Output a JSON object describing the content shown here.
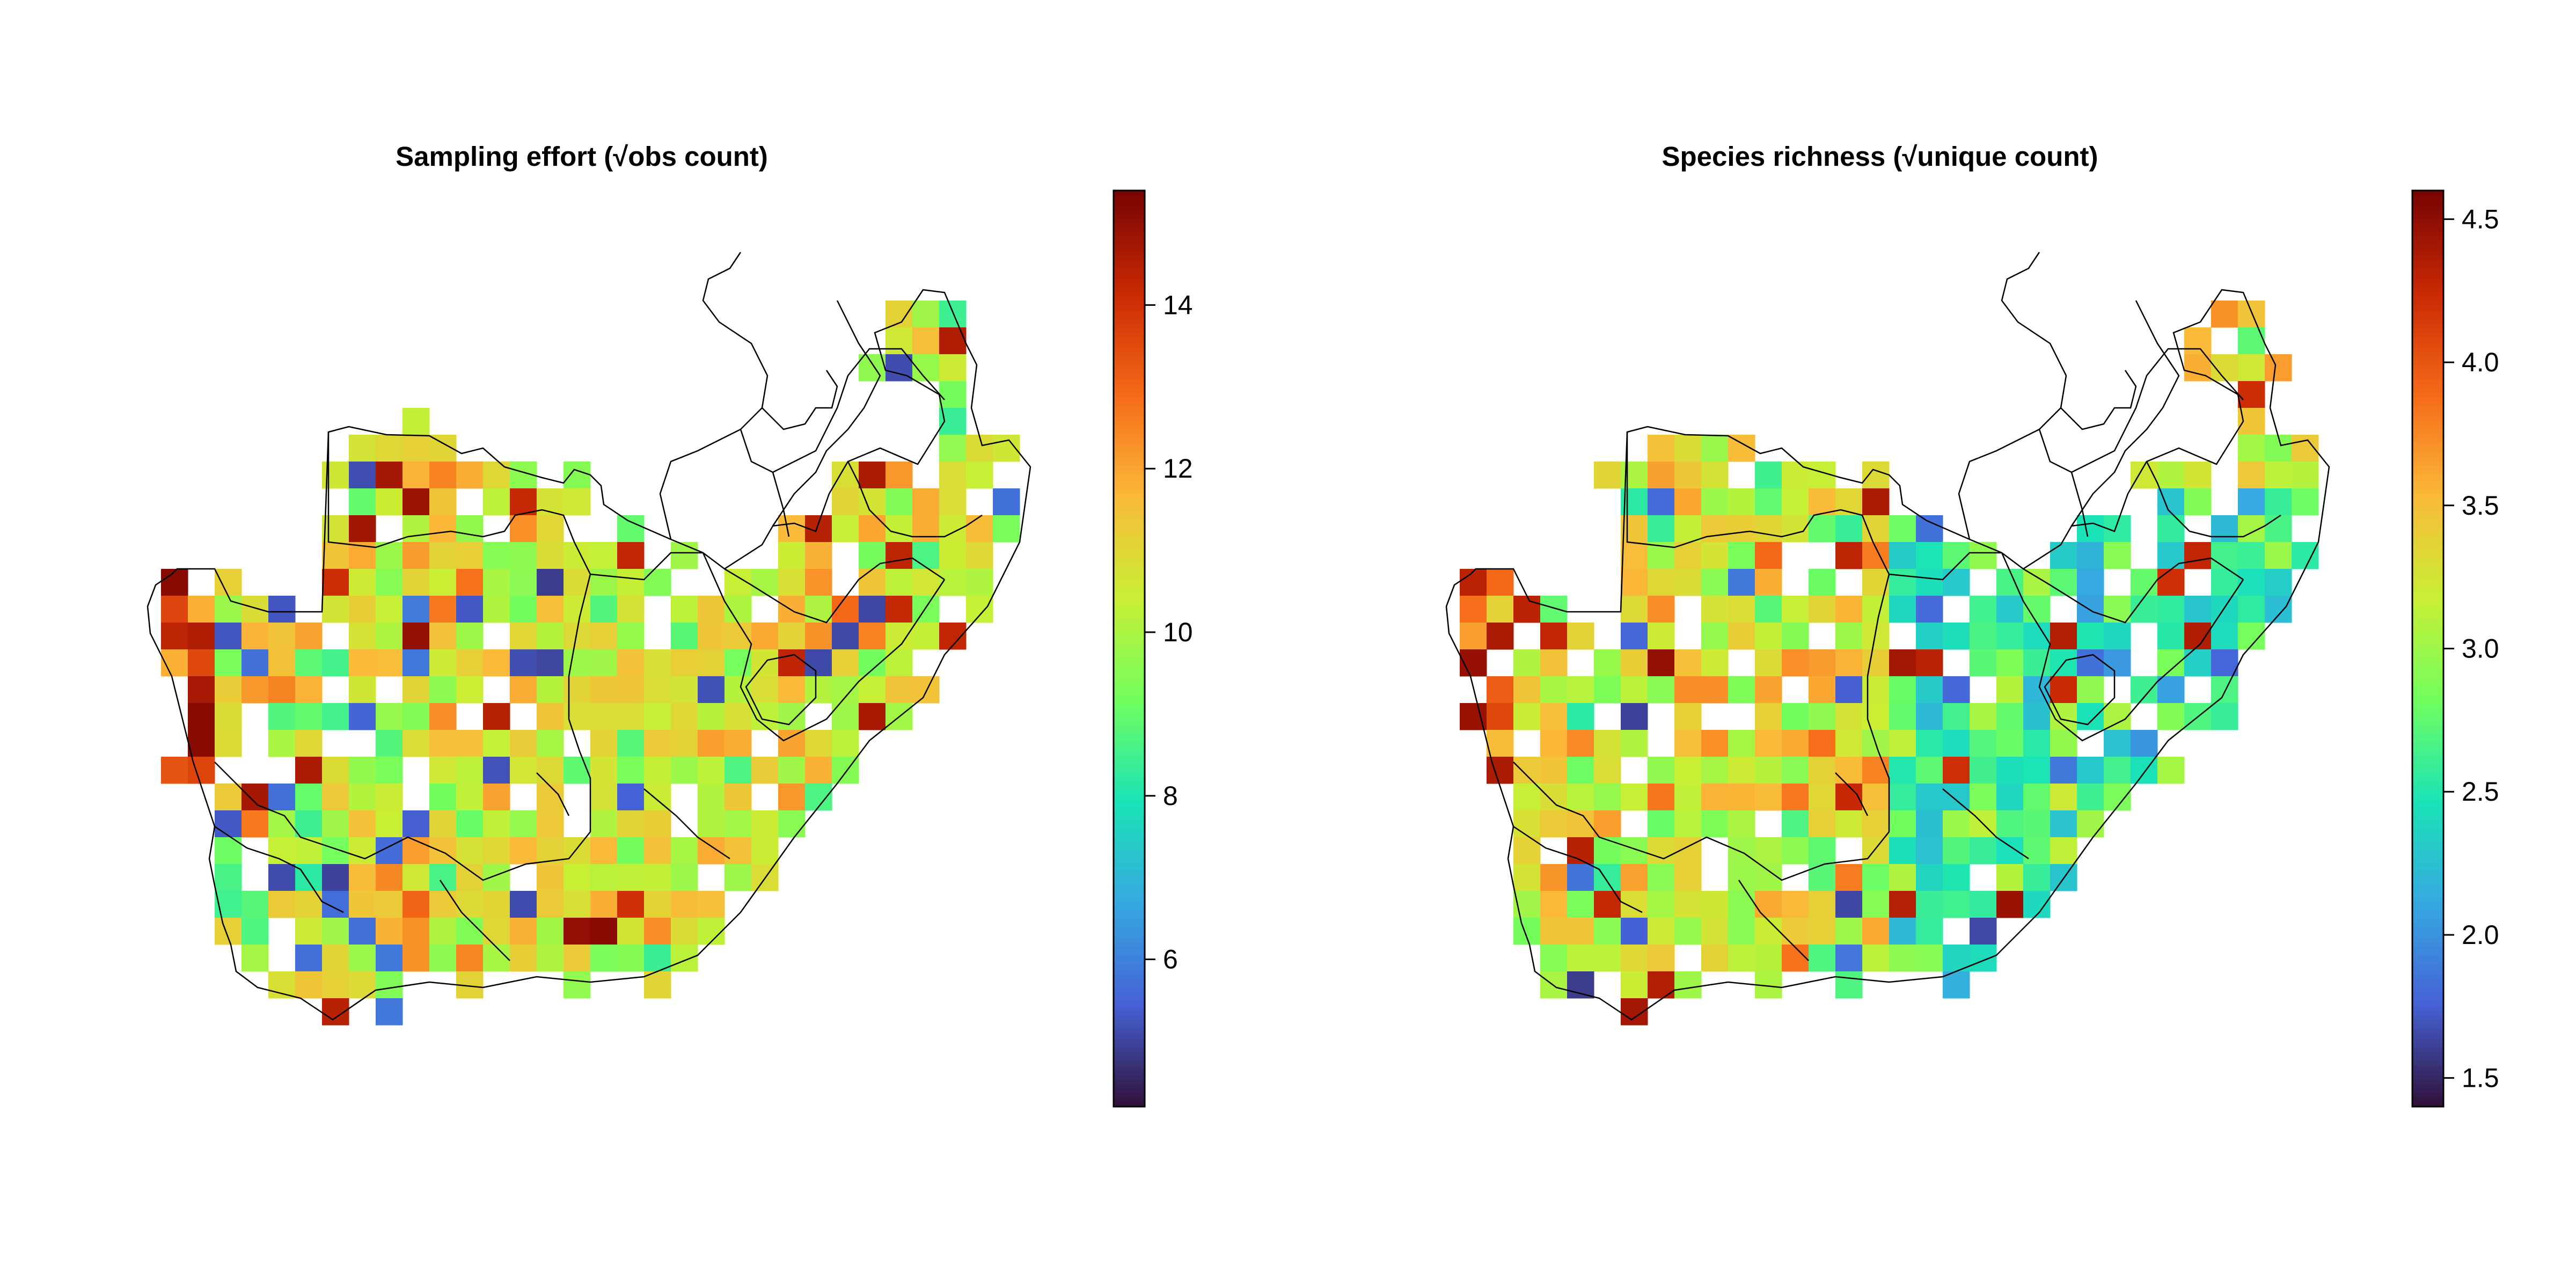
{
  "panels": [
    {
      "id": "sampling",
      "title": "Sampling effort (√obs count)",
      "colorbar": {
        "min": 4.2,
        "max": 15.4,
        "ticks": [
          6,
          8,
          10,
          12,
          14
        ]
      }
    },
    {
      "id": "richness",
      "title": "Species richness (√unique count)",
      "colorbar": {
        "min": 1.4,
        "max": 4.6,
        "ticks": [
          1.5,
          2.0,
          2.5,
          3.0,
          3.5,
          4.0,
          4.5
        ]
      }
    }
  ],
  "palette": [
    "#30123b",
    "#4662d7",
    "#36a9e1",
    "#1ae4b6",
    "#72fe5e",
    "#c8ef34",
    "#faba39",
    "#f66b19",
    "#ca2a04",
    "#7a0403"
  ]
}
